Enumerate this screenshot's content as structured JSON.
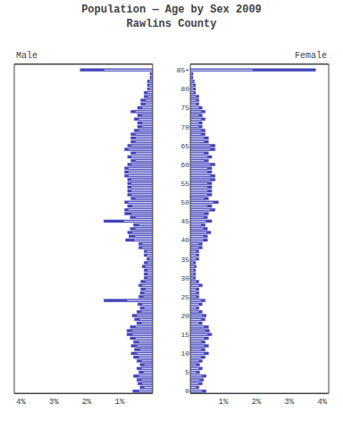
{
  "chart_data": {
    "type": "bar",
    "orientation": "horizontal",
    "title": "Population — Age by Sex 2009",
    "subtitle": "Rawlins County",
    "grid": false,
    "y": [
      0,
      1,
      2,
      3,
      4,
      5,
      6,
      7,
      8,
      9,
      10,
      11,
      12,
      13,
      14,
      15,
      16,
      17,
      18,
      19,
      20,
      21,
      22,
      23,
      24,
      25,
      26,
      27,
      28,
      29,
      30,
      31,
      32,
      33,
      34,
      35,
      36,
      37,
      38,
      39,
      40,
      41,
      42,
      43,
      44,
      45,
      46,
      47,
      48,
      49,
      50,
      51,
      52,
      53,
      54,
      55,
      56,
      57,
      58,
      59,
      60,
      61,
      62,
      63,
      64,
      65,
      66,
      67,
      68,
      69,
      70,
      71,
      72,
      73,
      74,
      75,
      76,
      77,
      78,
      79,
      80,
      81,
      82,
      83,
      84,
      85
    ],
    "ylim": [
      -0.55,
      86.5
    ],
    "yticks": [
      0,
      5,
      10,
      15,
      20,
      25,
      30,
      35,
      40,
      45,
      50,
      55,
      60,
      65,
      70,
      75,
      80,
      {
        "value": 85,
        "label": "85+"
      }
    ],
    "xlim": [
      0,
      4.2
    ],
    "xticks": [
      {
        "value": 1,
        "label": "1%"
      },
      {
        "value": 2,
        "label": "2%"
      },
      {
        "value": 3,
        "label": "3%"
      },
      {
        "value": 4,
        "label": "4%"
      }
    ],
    "series": [
      {
        "name": "Male",
        "color": "#4444bb",
        "values": [
          0.6,
          0.38,
          0.45,
          0.48,
          0.58,
          0.42,
          0.48,
          0.38,
          0.48,
          0.58,
          0.65,
          0.55,
          0.65,
          0.58,
          0.68,
          0.78,
          0.78,
          0.68,
          0.48,
          0.55,
          0.62,
          0.48,
          0.38,
          0.45,
          1.48,
          0.42,
          0.38,
          0.36,
          0.42,
          0.36,
          0.26,
          0.26,
          0.26,
          0.32,
          0.26,
          0.18,
          0.26,
          0.26,
          0.42,
          0.42,
          0.82,
          0.72,
          0.76,
          0.68,
          0.58,
          1.48,
          0.68,
          0.85,
          0.85,
          0.76,
          0.85,
          0.66,
          0.76,
          0.76,
          0.76,
          0.76,
          0.76,
          0.85,
          0.85,
          0.85,
          0.76,
          0.66,
          0.76,
          0.66,
          0.85,
          0.76,
          0.66,
          0.66,
          0.66,
          0.56,
          0.46,
          0.46,
          0.56,
          0.46,
          0.66,
          0.46,
          0.36,
          0.36,
          0.26,
          0.26,
          0.16,
          0.16,
          0.16,
          0.08,
          0.08,
          2.2
        ]
      },
      {
        "color": "#ffffff",
        "values": [
          0.42,
          0.26,
          0.32,
          0.34,
          0.42,
          0.28,
          0.34,
          0.26,
          0.34,
          0.42,
          0.48,
          0.38,
          0.48,
          0.42,
          0.52,
          0.62,
          0.62,
          0.52,
          0.34,
          0.4,
          0.48,
          0.34,
          0.26,
          0.32,
          0.78,
          0.28,
          0.26,
          0.22,
          0.32,
          0.22,
          0.16,
          0.16,
          0.16,
          0.22,
          0.16,
          0.1,
          0.18,
          0.18,
          0.32,
          0.32,
          0.56,
          0.54,
          0.62,
          0.52,
          0.42,
          0.88,
          0.52,
          0.65,
          0.74,
          0.62,
          0.74,
          0.52,
          0.65,
          0.65,
          0.65,
          0.65,
          0.65,
          0.74,
          0.74,
          0.74,
          0.65,
          0.52,
          0.65,
          0.52,
          0.74,
          0.65,
          0.52,
          0.52,
          0.52,
          0.42,
          0.32,
          0.32,
          0.42,
          0.32,
          0.52,
          0.32,
          0.22,
          0.22,
          0.16,
          0.16,
          0.1,
          0.1,
          0.1,
          0.05,
          0.05,
          1.48
        ]
      },
      {
        "name": "Female",
        "color": "#4444bb",
        "values": [
          0.48,
          0.26,
          0.36,
          0.4,
          0.48,
          0.28,
          0.36,
          0.28,
          0.36,
          0.45,
          0.55,
          0.45,
          0.55,
          0.45,
          0.55,
          0.65,
          0.58,
          0.55,
          0.36,
          0.45,
          0.48,
          0.36,
          0.26,
          0.36,
          0.45,
          0.26,
          0.26,
          0.26,
          0.36,
          0.26,
          0.16,
          0.16,
          0.16,
          0.18,
          0.16,
          0.26,
          0.26,
          0.26,
          0.36,
          0.36,
          0.52,
          0.52,
          0.62,
          0.52,
          0.45,
          0.65,
          0.52,
          0.55,
          0.75,
          0.65,
          0.85,
          0.55,
          0.65,
          0.65,
          0.65,
          0.65,
          0.75,
          0.75,
          0.65,
          0.65,
          0.75,
          0.55,
          0.65,
          0.55,
          0.75,
          0.75,
          0.55,
          0.55,
          0.45,
          0.45,
          0.36,
          0.36,
          0.45,
          0.36,
          0.45,
          0.36,
          0.26,
          0.26,
          0.26,
          0.16,
          0.16,
          0.16,
          0.12,
          0.08,
          0.08,
          3.8
        ]
      },
      {
        "color": "#ffffff",
        "values": [
          0.36,
          0.18,
          0.26,
          0.28,
          0.36,
          0.18,
          0.26,
          0.18,
          0.26,
          0.33,
          0.42,
          0.33,
          0.42,
          0.33,
          0.42,
          0.52,
          0.45,
          0.42,
          0.26,
          0.33,
          0.36,
          0.26,
          0.18,
          0.26,
          0.33,
          0.18,
          0.18,
          0.18,
          0.26,
          0.18,
          0.1,
          0.1,
          0.1,
          0.12,
          0.1,
          0.18,
          0.18,
          0.18,
          0.26,
          0.26,
          0.4,
          0.4,
          0.5,
          0.4,
          0.33,
          0.48,
          0.4,
          0.42,
          0.6,
          0.52,
          0.7,
          0.42,
          0.52,
          0.52,
          0.52,
          0.52,
          0.6,
          0.6,
          0.52,
          0.52,
          0.6,
          0.42,
          0.52,
          0.42,
          0.6,
          0.6,
          0.42,
          0.42,
          0.33,
          0.33,
          0.26,
          0.26,
          0.33,
          0.26,
          0.33,
          0.26,
          0.18,
          0.18,
          0.18,
          0.1,
          0.1,
          0.1,
          0.08,
          0.05,
          0.05,
          1.9
        ]
      }
    ]
  }
}
